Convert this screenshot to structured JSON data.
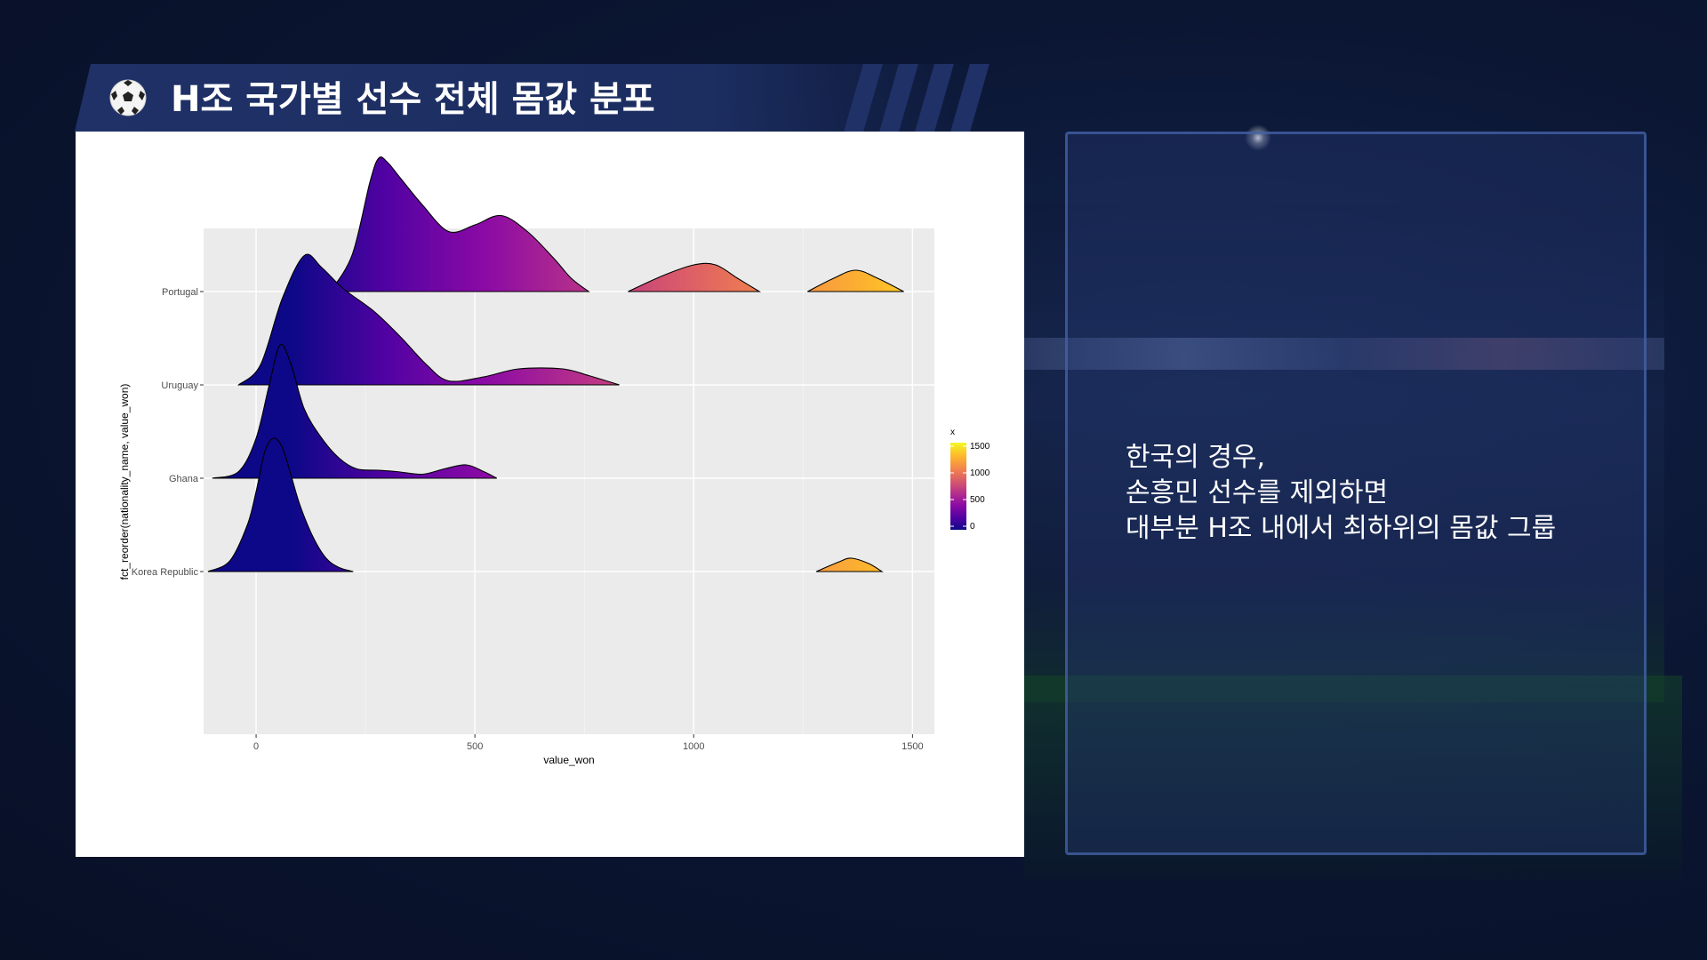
{
  "header": {
    "title": "H조 국가별 선수 전체 몸값 분포",
    "icon": "soccer-ball-icon"
  },
  "colors": {
    "background": "#0b1633",
    "banner": "#1f3167",
    "plot_bg": "#ebebeb",
    "scale_low": "#0d0887",
    "scale_mid": "#9c179e",
    "scale_high": "#f0f921"
  },
  "chart_data": {
    "type": "ridgeline",
    "title": "",
    "xlabel": "value_won",
    "ylabel": "fct_reorder(nationality_name, value_won)",
    "xlim": [
      -120,
      1550
    ],
    "x_ticks": [
      0,
      500,
      1000,
      1500
    ],
    "grid": true,
    "legend": {
      "title": "x",
      "position": "right",
      "ticks": [
        0,
        500,
        1000,
        1500
      ],
      "colorscale": "plasma"
    },
    "categories": [
      "Korea Republic",
      "Ghana",
      "Uruguay",
      "Portugal"
    ],
    "series": [
      {
        "name": "Korea Republic",
        "x": [
          -110,
          -60,
          -20,
          0,
          20,
          40,
          60,
          80,
          100,
          130,
          160,
          190,
          222,
          1280,
          1330,
          1360,
          1400,
          1430
        ],
        "density": [
          0,
          0.08,
          0.35,
          0.6,
          0.9,
          1.0,
          0.93,
          0.72,
          0.5,
          0.26,
          0.1,
          0.03,
          0,
          0,
          0.07,
          0.1,
          0.06,
          0
        ],
        "segments": [
          [
            0,
            12
          ],
          [
            13,
            17
          ]
        ]
      },
      {
        "name": "Ghana",
        "x": [
          -100,
          -40,
          0,
          30,
          55,
          80,
          110,
          150,
          190,
          230,
          280,
          320,
          380,
          430,
          480,
          520,
          550
        ],
        "density": [
          0,
          0.05,
          0.3,
          0.7,
          1.0,
          0.85,
          0.52,
          0.3,
          0.15,
          0.07,
          0.06,
          0.05,
          0.03,
          0.07,
          0.1,
          0.05,
          0
        ],
        "segments": [
          [
            0,
            16
          ]
        ]
      },
      {
        "name": "Uruguay",
        "x": [
          -40,
          10,
          60,
          110,
          150,
          200,
          270,
          330,
          390,
          440,
          520,
          600,
          700,
          760,
          830
        ],
        "density": [
          0,
          0.15,
          0.65,
          0.97,
          0.88,
          0.72,
          0.55,
          0.36,
          0.15,
          0.03,
          0.06,
          0.12,
          0.12,
          0.07,
          0
        ],
        "segments": [
          [
            0,
            14
          ]
        ]
      },
      {
        "name": "Portugal",
        "x": [
          170,
          220,
          260,
          280,
          300,
          330,
          380,
          440,
          500,
          560,
          620,
          680,
          720,
          760,
          850,
          930,
          1000,
          1050,
          1100,
          1150,
          1260,
          1320,
          1370,
          1420,
          1480
        ],
        "density": [
          0,
          0.28,
          0.82,
          1.0,
          0.97,
          0.85,
          0.65,
          0.45,
          0.5,
          0.57,
          0.45,
          0.25,
          0.1,
          0,
          0,
          0.12,
          0.2,
          0.2,
          0.1,
          0,
          0,
          0.1,
          0.16,
          0.1,
          0
        ],
        "segments": [
          [
            0,
            13
          ],
          [
            14,
            19
          ],
          [
            20,
            24
          ]
        ]
      }
    ]
  },
  "note": {
    "lines": [
      "한국의 경우,",
      "손흥민 선수를 제외하면",
      "대부분 H조 내에서 최하위의 몸값 그룹"
    ]
  }
}
